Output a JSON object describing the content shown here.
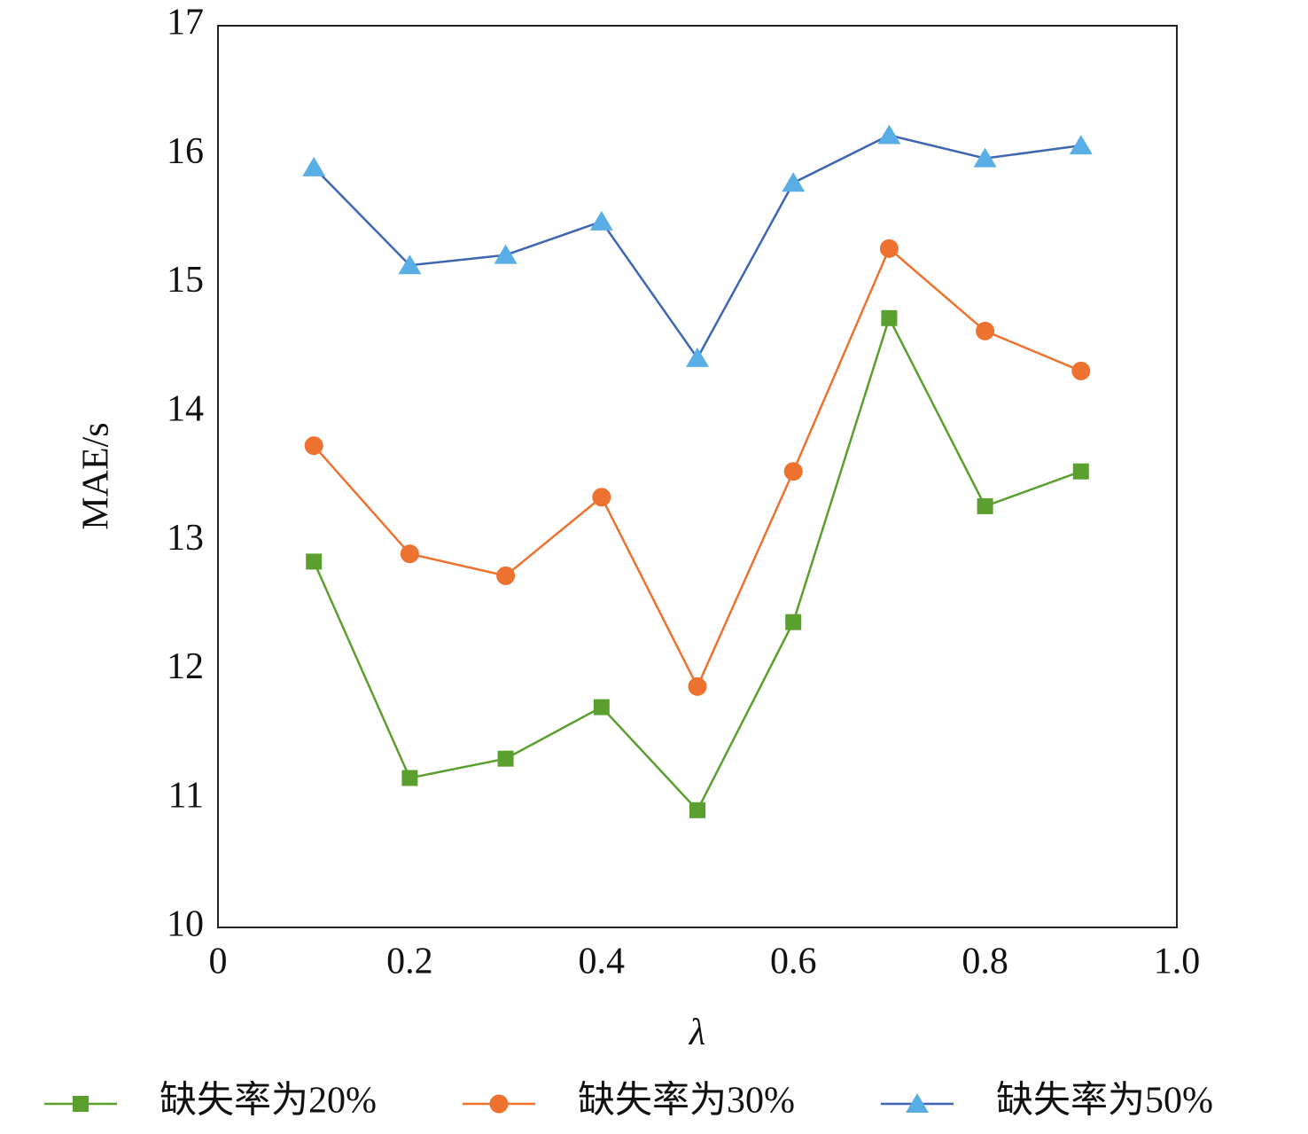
{
  "chart_data": {
    "type": "line",
    "x_label": "λ",
    "y_label": "MAE/s",
    "x": [
      0.1,
      0.2,
      0.3,
      0.4,
      0.5,
      0.6,
      0.7,
      0.8,
      0.9
    ],
    "series": [
      {
        "name": "缺失率为20%",
        "color": "#5b9f2f",
        "marker": "square",
        "values": [
          12.84,
          11.16,
          11.31,
          11.71,
          10.91,
          12.37,
          14.73,
          13.27,
          13.54
        ]
      },
      {
        "name": "缺失率为30%",
        "color": "#ed7230",
        "marker": "circle",
        "values": [
          13.74,
          12.9,
          12.73,
          13.34,
          11.87,
          13.54,
          15.27,
          14.63,
          14.32
        ]
      },
      {
        "name": "缺失率为50%",
        "color": "#3f66b3",
        "marker_color": "#5aaee6",
        "marker": "triangle",
        "values": [
          15.9,
          15.14,
          15.22,
          15.48,
          14.42,
          15.78,
          16.15,
          15.97,
          16.07
        ]
      }
    ],
    "xlim": [
      0,
      1
    ],
    "xticks": [
      0,
      0.2,
      0.4,
      0.6,
      0.8,
      {
        "value": 1,
        "label": "1.0"
      }
    ],
    "ylim": [
      10,
      17
    ],
    "yticks": [
      10,
      11,
      12,
      13,
      14,
      15,
      16,
      17
    ],
    "grid": false,
    "legend": "bottom"
  }
}
